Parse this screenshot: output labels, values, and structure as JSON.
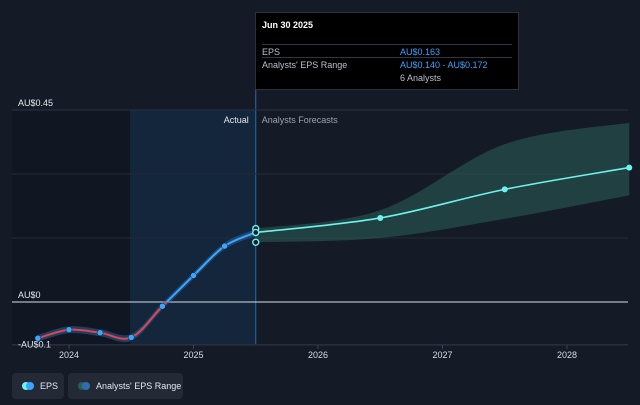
{
  "chart_data": {
    "type": "line",
    "x_ticks": [
      "2024",
      "2025",
      "2026",
      "2027",
      "2028"
    ],
    "y_ticks": [
      {
        "label": "AU$0.45",
        "value": 0.45
      },
      {
        "label": "AU$0",
        "value": 0
      },
      {
        "label": "-AU$0.1",
        "value": -0.1
      }
    ],
    "ylim": [
      -0.1,
      0.45
    ],
    "region_labels": {
      "actual": "Actual",
      "forecast": "Analysts Forecasts"
    },
    "series": [
      {
        "name": "EPS",
        "history": [
          {
            "x": 2023.75,
            "y": -0.085
          },
          {
            "x": 2024.0,
            "y": -0.065
          },
          {
            "x": 2024.25,
            "y": -0.072
          },
          {
            "x": 2024.5,
            "y": -0.083
          },
          {
            "x": 2024.75,
            "y": -0.01
          },
          {
            "x": 2025.0,
            "y": 0.062
          },
          {
            "x": 2025.25,
            "y": 0.131
          },
          {
            "x": 2025.5,
            "y": 0.163
          }
        ],
        "forecast": [
          {
            "x": 2025.5,
            "y": 0.163
          },
          {
            "x": 2026.5,
            "y": 0.197
          },
          {
            "x": 2027.5,
            "y": 0.264
          },
          {
            "x": 2028.5,
            "y": 0.315
          }
        ],
        "marker_points_at_last": [
          0.172,
          0.163,
          0.14
        ]
      },
      {
        "name": "Analysts' EPS Range",
        "range": [
          {
            "x": 2025.5,
            "low": 0.14,
            "high": 0.172
          },
          {
            "x": 2026.5,
            "low": 0.15,
            "high": 0.215
          },
          {
            "x": 2027.5,
            "low": 0.195,
            "high": 0.37
          },
          {
            "x": 2028.5,
            "low": 0.25,
            "high": 0.42
          }
        ]
      }
    ],
    "tooltip": {
      "date": "Jun 30 2025",
      "rows": [
        {
          "label": "EPS",
          "value": "AU$0.163"
        },
        {
          "label": "Analysts' EPS Range",
          "value": "AU$0.140 - AU$0.172"
        },
        {
          "label": "",
          "value": "6 Analysts"
        }
      ]
    },
    "legend": [
      {
        "label": "EPS"
      },
      {
        "label": "Analysts' EPS Range"
      }
    ],
    "colors": {
      "eps_line": "#3ba6ff",
      "eps_negative": "#e0444e",
      "forecast_line": "#6ef3ec",
      "range_fill": "#2b5e5a",
      "background": "#151b26"
    }
  }
}
